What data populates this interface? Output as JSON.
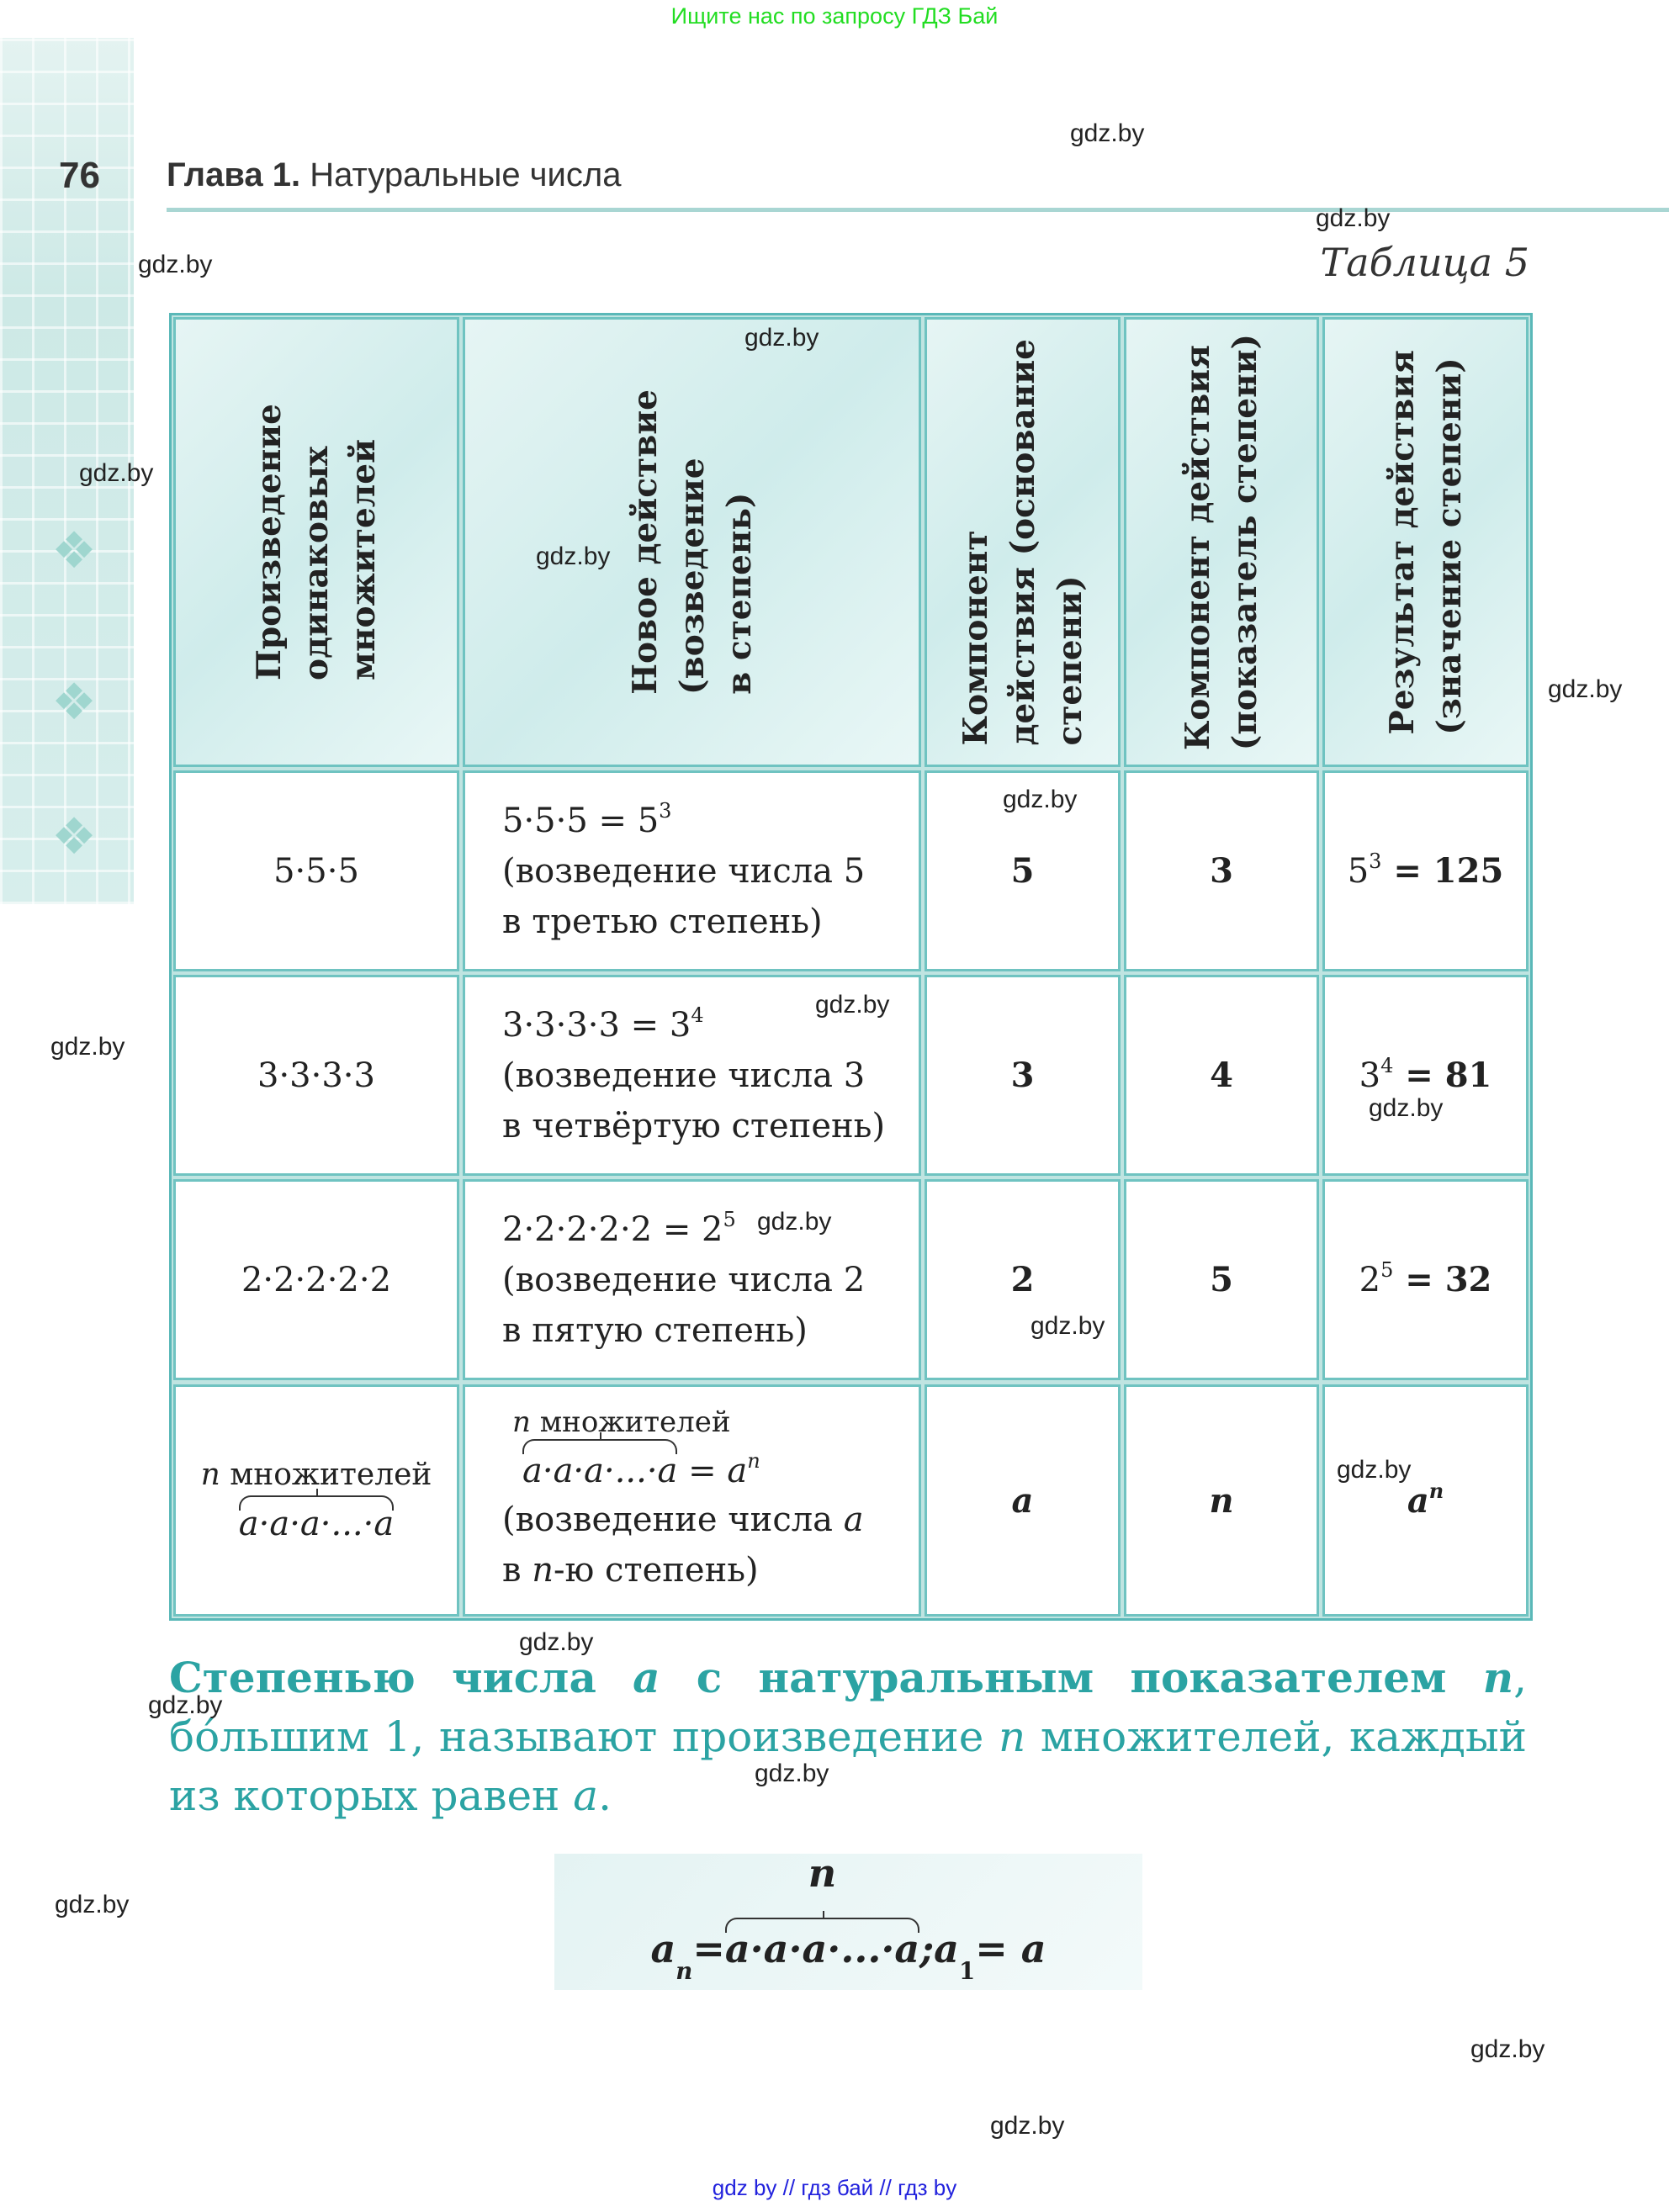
{
  "banner": "Ищите нас по запросу ГДЗ Бай",
  "page_number": "76",
  "chapter": {
    "label": "Глава 1.",
    "title": " Натуральные числа"
  },
  "table_caption": "Таблица 5",
  "table": {
    "headers": [
      "Произведение\nодинаковых\nмножителей",
      "Новое действие\n(возведение\nв степень)",
      "Компонент\nдействия (основание\nстепени)",
      "Компонент действия\n(показатель степени)",
      "Результат действия\n(значение степени)"
    ],
    "rows": [
      {
        "product": "5·5·5",
        "eq_left": "5·5·5 = 5",
        "eq_exp": "3",
        "desc1": "(возведение числа 5",
        "desc2": "в третью степень)",
        "base": "5",
        "exponent": "3",
        "res_base": "5",
        "res_exp": "3",
        "res_val": " = 125"
      },
      {
        "product": "3·3·3·3",
        "eq_left": "3·3·3·3 = 3",
        "eq_exp": "4",
        "desc1": "(возведение числа 3",
        "desc2": "в четвёртую степень)",
        "base": "3",
        "exponent": "4",
        "res_base": "3",
        "res_exp": "4",
        "res_val": " = 81"
      },
      {
        "product": "2·2·2·2·2",
        "eq_left": "2·2·2·2·2 = 2",
        "eq_exp": "5",
        "desc1": "(возведение числа 2",
        "desc2": "в пятую степень)",
        "base": "2",
        "exponent": "5",
        "res_base": "2",
        "res_exp": "5",
        "res_val": " = 32"
      }
    ],
    "general": {
      "brace_label_n": "n",
      "brace_label": " множителей",
      "product": "a·a·a·...·a",
      "eq": " = a",
      "eq_exp": "n",
      "desc1": "(возведение числа ",
      "desc1_var": "a",
      "desc2a": "в ",
      "desc2_var": "n",
      "desc2b": "-ю степень)",
      "base": "a",
      "exponent": "n",
      "res_base": "a",
      "res_exp": "n"
    }
  },
  "definition": {
    "bold1": "Степенью числа ",
    "var_a": "a",
    "bold2": " с натуральным показателем ",
    "var_n": "n",
    "rest1": ", бо́льшим 1, называют произведение ",
    "var_n2": "n",
    "rest2": " множителей, каждый из которых равен ",
    "var_a2": "a",
    "end": "."
  },
  "formula": {
    "lhs": "a",
    "lhs_exp": "n",
    "eq": " = ",
    "brace_label": "n",
    "product": "a·a·a·...·a",
    "sep": "; ",
    "a1": "a",
    "a1_exp": "1",
    "rhs": " = a"
  },
  "watermark": "gdz.by",
  "footer": "gdz by  //  гдз бай  //  гдз by",
  "colors": {
    "accent": "#2ba3a3",
    "banner": "#22dd22",
    "footer": "#2222dd",
    "table_border": "#5ab8b8"
  }
}
